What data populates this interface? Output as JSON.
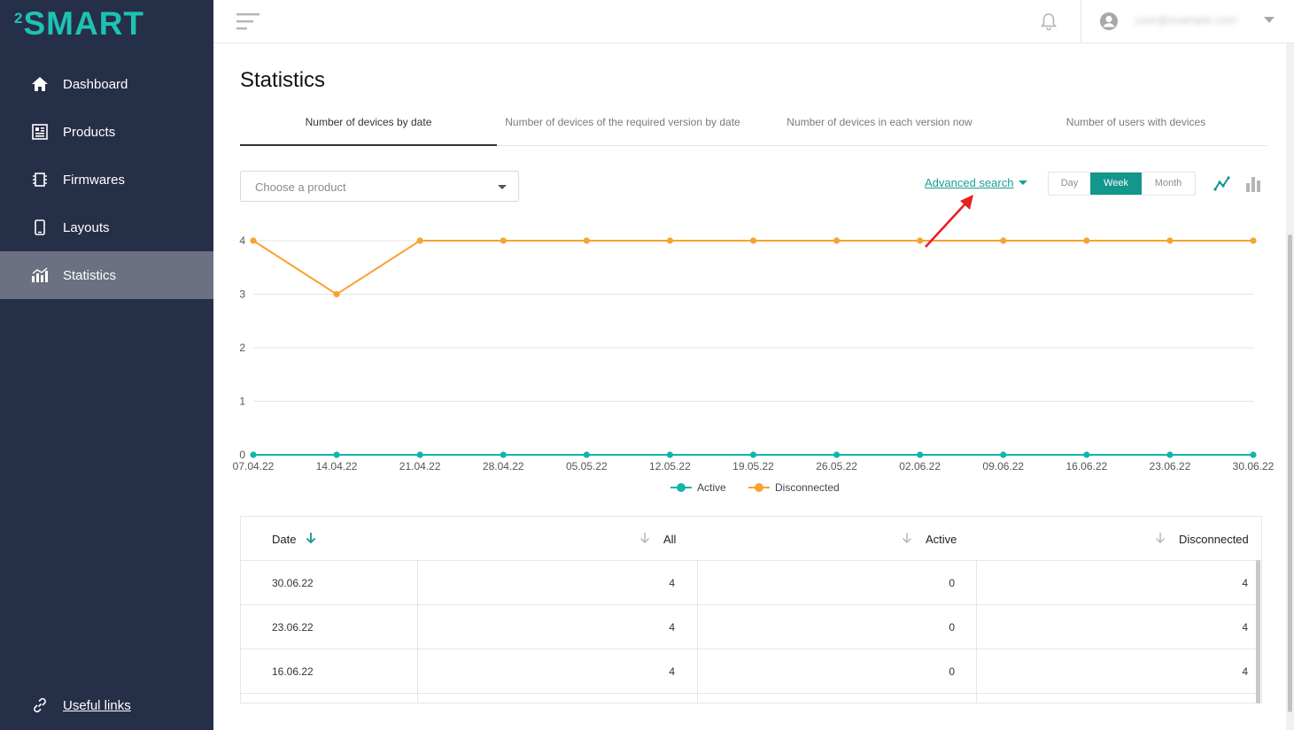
{
  "brand": {
    "logo_sup": "2",
    "logo_main": "SMART",
    "accent": "#1ec2b3"
  },
  "sidebar": {
    "items": [
      {
        "label": "Dashboard",
        "icon": "home-icon"
      },
      {
        "label": "Products",
        "icon": "products-icon"
      },
      {
        "label": "Firmwares",
        "icon": "chip-icon"
      },
      {
        "label": "Layouts",
        "icon": "phone-icon"
      },
      {
        "label": "Statistics",
        "icon": "statistics-icon",
        "active": true
      }
    ],
    "footer_link": {
      "label": "Useful links",
      "icon": "link-icon"
    }
  },
  "topbar": {
    "user_email": "user@example.com"
  },
  "page": {
    "title": "Statistics"
  },
  "tabs": [
    {
      "label": "Number of devices by date",
      "active": true
    },
    {
      "label": "Number of devices of the required version by date"
    },
    {
      "label": "Number of devices in each version now"
    },
    {
      "label": "Number of users with devices"
    }
  ],
  "filters": {
    "product_placeholder": "Choose a product",
    "advanced_search": "Advanced search",
    "period": {
      "options": [
        "Day",
        "Week",
        "Month"
      ],
      "selected": "Week"
    },
    "accent": "#13968b"
  },
  "chart_data": {
    "type": "line",
    "x": [
      "07.04.22",
      "14.04.22",
      "21.04.22",
      "28.04.22",
      "05.05.22",
      "12.05.22",
      "19.05.22",
      "26.05.22",
      "02.06.22",
      "09.06.22",
      "16.06.22",
      "23.06.22",
      "30.06.22"
    ],
    "series": [
      {
        "name": "Active",
        "color": "#12b5ac",
        "values": [
          0,
          0,
          0,
          0,
          0,
          0,
          0,
          0,
          0,
          0,
          0,
          0,
          0
        ]
      },
      {
        "name": "Disconnected",
        "color": "#f7a334",
        "values": [
          4,
          3,
          4,
          4,
          4,
          4,
          4,
          4,
          4,
          4,
          4,
          4,
          4
        ]
      }
    ],
    "yticks": [
      0,
      1,
      2,
      3,
      4
    ],
    "ylim": [
      0,
      4
    ],
    "grid": true,
    "legend": "bottom"
  },
  "table": {
    "headers": {
      "date": "Date",
      "all": "All",
      "active": "Active",
      "disconnected": "Disconnected"
    },
    "rows": [
      {
        "date": "30.06.22",
        "all": "4",
        "active": "0",
        "disconnected": "4"
      },
      {
        "date": "23.06.22",
        "all": "4",
        "active": "0",
        "disconnected": "4"
      },
      {
        "date": "16.06.22",
        "all": "4",
        "active": "0",
        "disconnected": "4"
      }
    ]
  }
}
